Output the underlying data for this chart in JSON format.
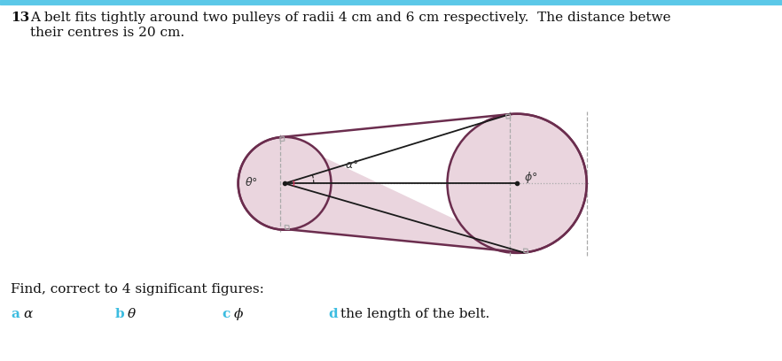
{
  "page_bg": "#ffffff",
  "title_number": "13",
  "title_text": "A belt fits tightly around two pulleys of radii 4 cm and 6 cm respectively.  The distance betwe",
  "title_text2": "their centres is 20 cm.",
  "find_text": "Find, correct to 4 significant figures:",
  "parts": [
    {
      "label": "a",
      "symbol": "α"
    },
    {
      "label": "b",
      "symbol": "θ"
    },
    {
      "label": "c",
      "symbol": "ϕ"
    },
    {
      "label": "d",
      "symbol": "the length of the belt."
    }
  ],
  "r1": 4,
  "r2": 6,
  "dist": 20,
  "belt_color": "#6b2d4e",
  "circle_fill": "#ead5de",
  "circle_edge": "#6b2d4e",
  "dashed_color": "#aaaaaa",
  "dot_line_color": "#aaaaaa",
  "line_color": "#1a1a1a",
  "arc_color": "#cc3355",
  "label_color": "#333333",
  "cyan_color": "#3bbce0",
  "blue_bar_color": "#5bc8e8",
  "sq_size": 0.35
}
